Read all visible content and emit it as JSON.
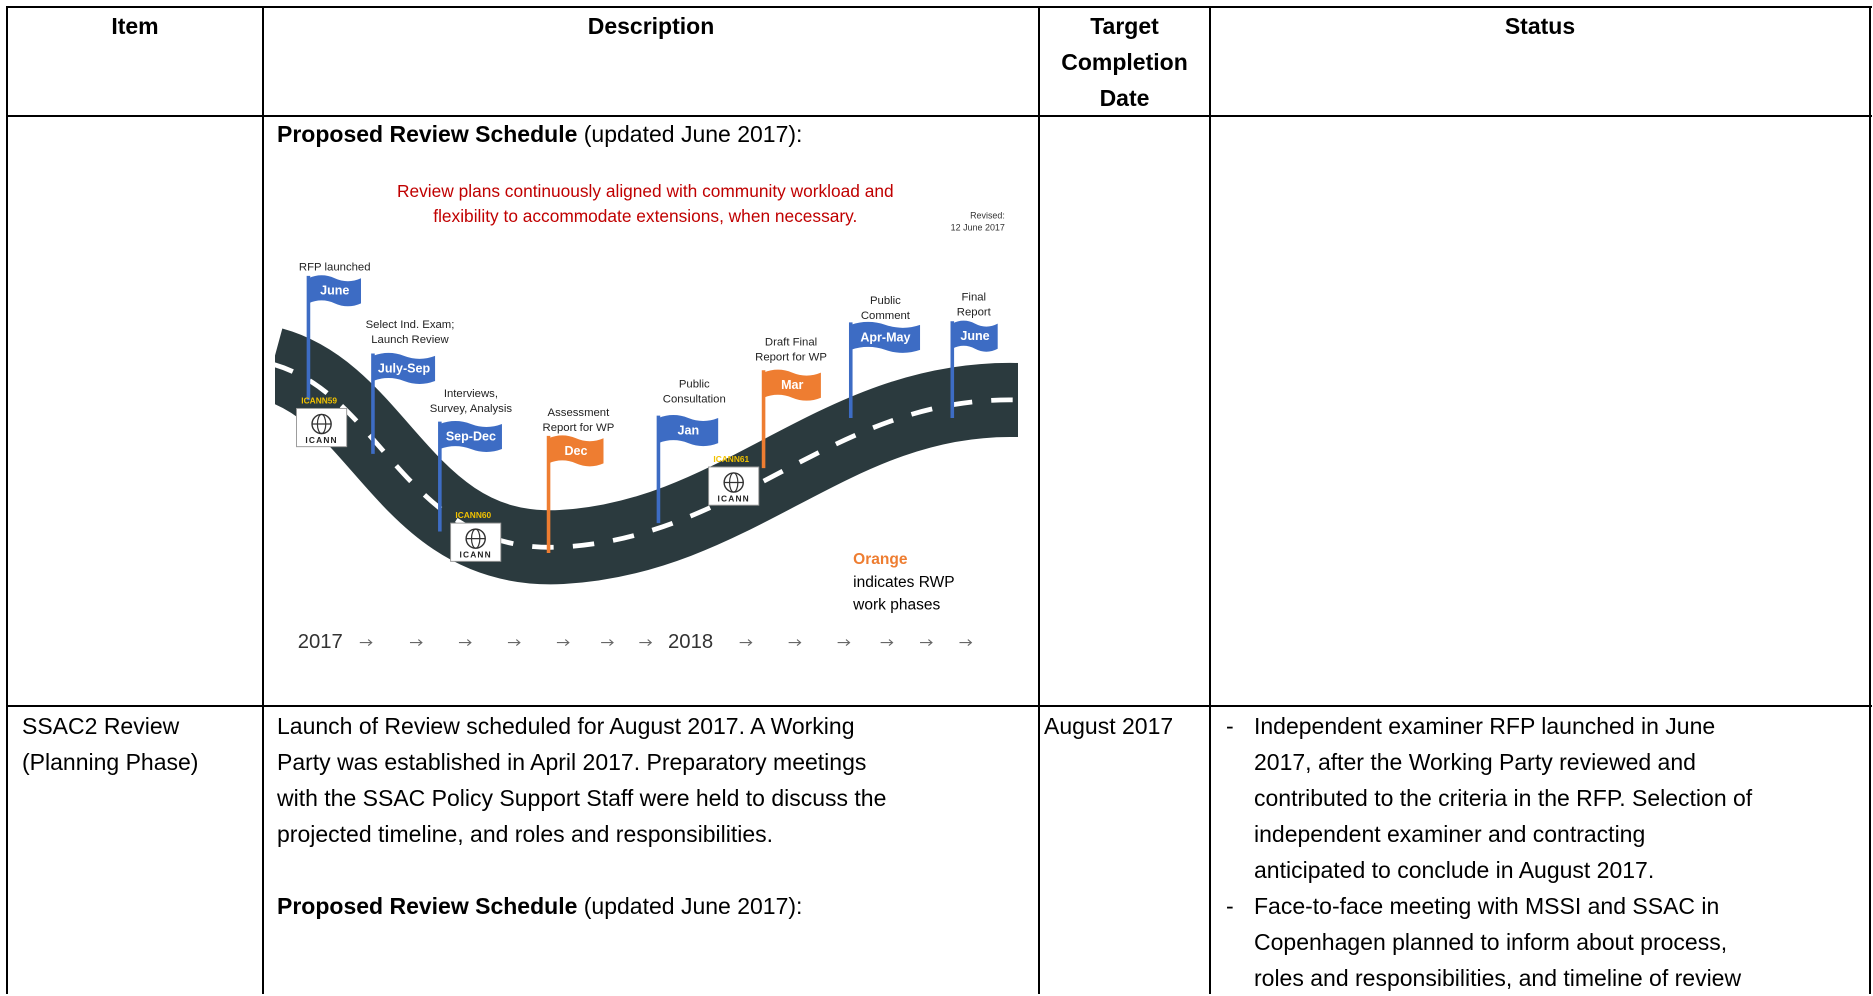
{
  "header": {
    "item": "Item",
    "description": "Description",
    "target": "Target Completion Date",
    "status": "Status"
  },
  "row1": {
    "schedule": {
      "bold": "Proposed Review Schedule",
      "rest": "(updated June 2017):"
    },
    "diagram": {
      "headline": [
        "Review plans continuously aligned with community workload and",
        "flexibility to accommodate extensions, when necessary."
      ],
      "revised": [
        "Revised:",
        "12 June 2017"
      ],
      "flags": [
        {
          "label": [
            "RFP launched"
          ],
          "month": "June",
          "color": "#3d6cc4"
        },
        {
          "label": [
            "Select Ind. Exam;",
            "Launch Review"
          ],
          "month": "July-Sep",
          "color": "#3d6cc4"
        },
        {
          "label": [
            "Interviews,",
            "Survey, Analysis"
          ],
          "month": "Sep-Dec",
          "color": "#3d6cc4"
        },
        {
          "label": [
            "Assessment",
            "Report for WP"
          ],
          "month": "Dec",
          "color": "#ee7d31"
        },
        {
          "label": [
            "Public",
            "Consultation"
          ],
          "month": "Jan",
          "color": "#3d6cc4"
        },
        {
          "label": [
            "Draft Final",
            "Report for WP"
          ],
          "month": "Mar",
          "color": "#ee7d31"
        },
        {
          "label": [
            "Public",
            "Comment"
          ],
          "month": "Apr-May",
          "color": "#3d6cc4"
        },
        {
          "label": [
            "Final",
            "Report"
          ],
          "month": "June",
          "color": "#3d6cc4"
        }
      ],
      "meetings": [
        {
          "name": "ICANN59",
          "logo": "ICANN"
        },
        {
          "name": "ICANN60",
          "logo": "ICANN"
        },
        {
          "name": "ICANN61",
          "logo": "ICANN"
        }
      ],
      "legend": {
        "key": "Orange",
        "text": [
          "indicates RWP",
          "work phases"
        ]
      },
      "years": [
        "2017",
        "2018"
      ]
    }
  },
  "row2": {
    "item": [
      "SSAC2 Review",
      "(Planning Phase)"
    ],
    "description": [
      "Launch of Review scheduled for August 2017.  A Working",
      "Party was established in April 2017. Preparatory meetings",
      "with the SSAC Policy Support Staff were held to discuss the",
      "projected timeline, and roles and responsibilities."
    ],
    "schedule": {
      "bold": "Proposed Review Schedule",
      "rest": "(updated June 2017):"
    },
    "target": "August 2017",
    "status": [
      {
        "bullet": "-",
        "lines": [
          "Independent examiner RFP launched in June",
          "2017, after the Working Party reviewed and",
          "contributed to the criteria in the RFP.  Selection of",
          "independent examiner and contracting",
          "anticipated to conclude in August 2017."
        ]
      },
      {
        "bullet": "-",
        "lines": [
          "Face-to-face meeting with MSSI and SSAC in",
          "Copenhagen planned to inform about process,",
          "roles and responsibilities, and timeline of review"
        ]
      }
    ]
  }
}
